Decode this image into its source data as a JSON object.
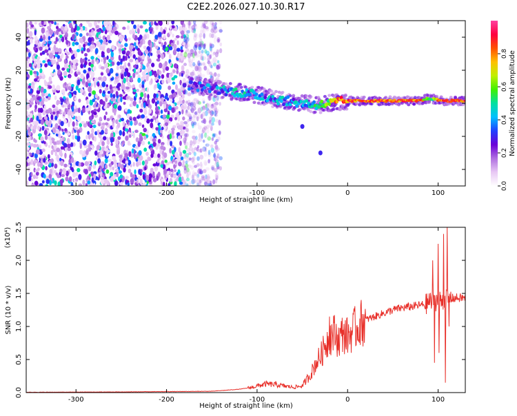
{
  "page": {
    "title": "C2E2.2026.027.10.30.R17"
  },
  "chart_data": [
    {
      "type": "heatmap",
      "title": "C2E2.2026.027.10.30.R17",
      "xlabel": "Height of straight line (km)",
      "ylabel": "Frequency (Hz)",
      "xlim": [
        -355,
        130
      ],
      "ylim": [
        -50,
        50
      ],
      "x_ticks": [
        -300,
        -200,
        -100,
        0,
        100
      ],
      "y_ticks": [
        -40,
        -20,
        0,
        20,
        40
      ],
      "grid": false,
      "colorbar": {
        "label": "Normalized spectral amplitude",
        "range": [
          0,
          1
        ],
        "ticks": [
          "0.0",
          "0.2",
          "0.4",
          "0.6",
          "0.8"
        ],
        "colormap": [
          "#ffffff",
          "#e8c8f4",
          "#b070e0",
          "#6a00d8",
          "#2040ff",
          "#00c0ff",
          "#00e0a0",
          "#40f000",
          "#c0f000",
          "#ffc000",
          "#ff5000",
          "#ff0040",
          "#ff40a0"
        ]
      },
      "signal_track": {
        "description_points_x": [
          -175,
          -150,
          -125,
          -100,
          -75,
          -50,
          -30,
          -10,
          10,
          40,
          80,
          90,
          100,
          110,
          130
        ],
        "center_freq_hz": [
          11,
          9,
          7,
          5,
          2,
          0,
          -1,
          1,
          1.5,
          1.5,
          1.5,
          3,
          2,
          1.5,
          1.5
        ],
        "peak_amplitude": [
          0.4,
          0.45,
          0.55,
          0.5,
          0.5,
          0.5,
          0.6,
          0.95,
          0.95,
          0.95,
          0.95,
          0.6,
          0.9,
          0.95,
          0.95
        ]
      },
      "noise_region_x": [
        -355,
        -140
      ],
      "isolated_blobs": [
        {
          "x": -50,
          "freq": -14
        },
        {
          "x": -30,
          "freq": -30
        }
      ]
    },
    {
      "type": "line",
      "xlabel": "Height of straight line (km)",
      "ylabel": "SNR (10 * v/v)",
      "y_multiplier": "(x10⁴)",
      "xlim": [
        -355,
        130
      ],
      "ylim": [
        0,
        2.5
      ],
      "x_ticks": [
        -300,
        -200,
        -100,
        0,
        100
      ],
      "y_ticks": [
        "0.0",
        "0.5",
        "1.0",
        "1.5",
        "2.0",
        "2.5"
      ],
      "grid": false,
      "series": [
        {
          "color": "#e8302a",
          "x": [
            -355,
            -250,
            -150,
            -120,
            -105,
            -100,
            -90,
            -80,
            -70,
            -60,
            -50,
            -45,
            -40,
            -35,
            -30,
            -25,
            -20,
            -15,
            -10,
            -5,
            0,
            10,
            20,
            30,
            40,
            50,
            60,
            70,
            80,
            90,
            95,
            100,
            105,
            110,
            120,
            130
          ],
          "y": [
            0.005,
            0.01,
            0.02,
            0.05,
            0.08,
            0.1,
            0.13,
            0.12,
            0.1,
            0.08,
            0.1,
            0.2,
            0.3,
            0.45,
            0.55,
            0.7,
            0.85,
            0.9,
            0.8,
            0.9,
            0.85,
            1.0,
            1.1,
            1.15,
            1.2,
            1.25,
            1.28,
            1.3,
            1.32,
            1.35,
            1.4,
            1.38,
            1.4,
            1.42,
            1.43,
            1.43
          ],
          "spikes": [
            {
              "x": -25,
              "y": 0.75
            },
            {
              "x": -20,
              "y": 1.15
            },
            {
              "x": -15,
              "y": 1.05
            },
            {
              "x": -5,
              "y": 0.95
            },
            {
              "x": 10,
              "y": 1.0
            },
            {
              "x": 90,
              "y": 1.5
            },
            {
              "x": 94,
              "y": 2.0
            },
            {
              "x": 96,
              "y": 0.45
            },
            {
              "x": 100,
              "y": 2.25
            },
            {
              "x": 101,
              "y": 0.6
            },
            {
              "x": 106,
              "y": 2.4
            },
            {
              "x": 108,
              "y": 0.15
            },
            {
              "x": 110,
              "y": 2.5
            },
            {
              "x": 112,
              "y": 1.0
            }
          ]
        }
      ]
    }
  ]
}
